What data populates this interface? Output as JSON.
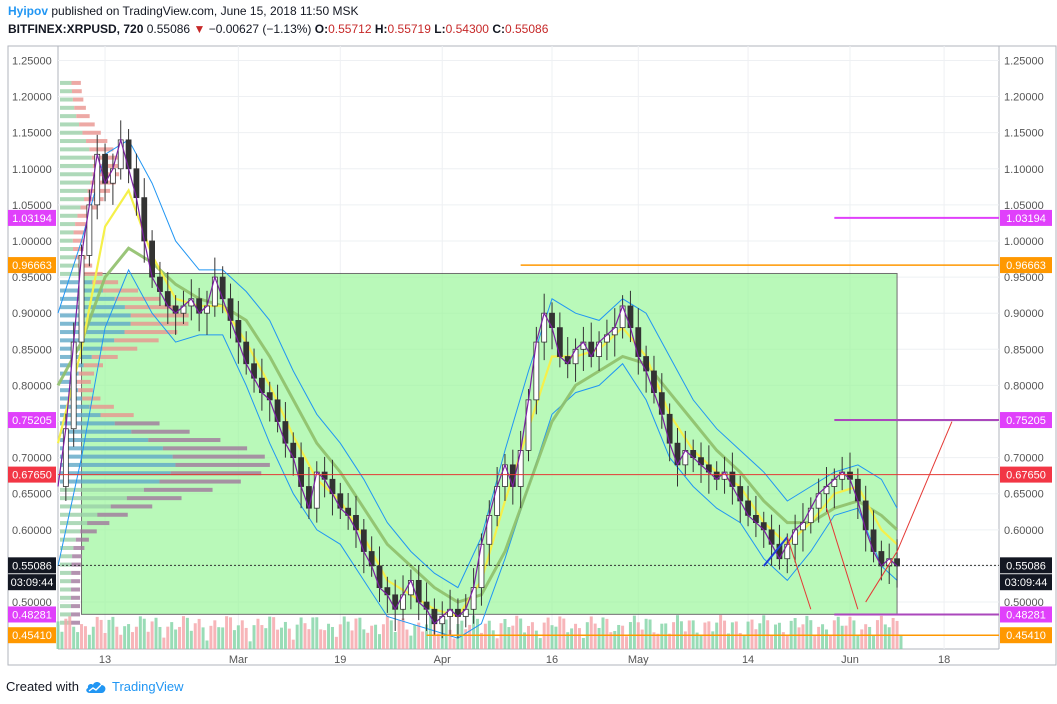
{
  "header": {
    "author": "Hyipov",
    "published": "published on TradingView.com, June 15, 2018 11:50 MSK",
    "symbol": "BITFINEX:XRPUSD, 720",
    "last": "0.55086",
    "change": "−0.00627 (−1.13%)",
    "o_label": "O:",
    "o": "0.55712",
    "h_label": "H:",
    "h": "0.55719",
    "l_label": "L:",
    "l": "0.54300",
    "c_label": "C:",
    "c": "0.55086"
  },
  "footer": {
    "created_with": "Created with",
    "brand": "TradingView"
  },
  "chart_data": {
    "type": "line",
    "price_axis": {
      "ylim": [
        0.435,
        1.27
      ],
      "ticks": [
        "0.50000",
        "0.55000",
        "0.60000",
        "0.65000",
        "0.70000",
        "0.75000",
        "0.80000",
        "0.85000",
        "0.90000",
        "0.95000",
        "1.00000",
        "1.05000",
        "1.10000",
        "1.15000",
        "1.20000",
        "1.25000"
      ]
    },
    "time_axis": {
      "labels": [
        "13",
        "Mar",
        "19",
        "Apr",
        "16",
        "May",
        "14",
        "Jun",
        "18"
      ]
    },
    "time_axis_positions_days": [
      0,
      17,
      30,
      43,
      57,
      68,
      82,
      95,
      107
    ],
    "time_range_days": [
      -6,
      114
    ],
    "price_labels": [
      {
        "text": "1.03194",
        "value": 1.03194,
        "color": "#e040fb"
      },
      {
        "text": "0.96663",
        "value": 0.96663,
        "color": "#ff9800"
      },
      {
        "text": "0.75205",
        "value": 0.75205,
        "color": "#e040fb"
      },
      {
        "text": "0.67650",
        "value": 0.6765,
        "color": "#f23645"
      },
      {
        "text": "0.55086",
        "value": 0.55086,
        "color": "#131722"
      },
      {
        "text": "03:09:44",
        "value": 0.5275,
        "color": "#131722"
      },
      {
        "text": "0.48281",
        "value": 0.48281,
        "color": "#e040fb"
      },
      {
        "text": "0.45410",
        "value": 0.4541,
        "color": "#ff9800"
      }
    ],
    "close_series": [
      [
        -6,
        0.66
      ],
      [
        -5,
        0.74
      ],
      [
        -4,
        0.86
      ],
      [
        -3,
        0.98
      ],
      [
        -2,
        1.05
      ],
      [
        -1,
        1.12
      ],
      [
        0,
        1.08
      ],
      [
        1,
        1.1
      ],
      [
        2,
        1.14
      ],
      [
        3,
        1.1
      ],
      [
        4,
        1.06
      ],
      [
        5,
        1.0
      ],
      [
        6,
        0.95
      ],
      [
        7,
        0.93
      ],
      [
        8,
        0.91
      ],
      [
        9,
        0.9
      ],
      [
        10,
        0.91
      ],
      [
        11,
        0.92
      ],
      [
        12,
        0.9
      ],
      [
        13,
        0.91
      ],
      [
        14,
        0.95
      ],
      [
        15,
        0.92
      ],
      [
        16,
        0.89
      ],
      [
        17,
        0.86
      ],
      [
        18,
        0.83
      ],
      [
        19,
        0.81
      ],
      [
        20,
        0.79
      ],
      [
        21,
        0.78
      ],
      [
        22,
        0.75
      ],
      [
        23,
        0.72
      ],
      [
        24,
        0.7
      ],
      [
        25,
        0.66
      ],
      [
        26,
        0.63
      ],
      [
        27,
        0.68
      ],
      [
        28,
        0.67
      ],
      [
        29,
        0.65
      ],
      [
        30,
        0.63
      ],
      [
        31,
        0.62
      ],
      [
        32,
        0.6
      ],
      [
        33,
        0.57
      ],
      [
        34,
        0.55
      ],
      [
        35,
        0.52
      ],
      [
        36,
        0.51
      ],
      [
        37,
        0.49
      ],
      [
        38,
        0.51
      ],
      [
        39,
        0.53
      ],
      [
        40,
        0.5
      ],
      [
        41,
        0.49
      ],
      [
        42,
        0.47
      ],
      [
        43,
        0.48
      ],
      [
        44,
        0.49
      ],
      [
        45,
        0.48
      ],
      [
        46,
        0.49
      ],
      [
        47,
        0.52
      ],
      [
        48,
        0.58
      ],
      [
        49,
        0.62
      ],
      [
        50,
        0.66
      ],
      [
        51,
        0.69
      ],
      [
        52,
        0.66
      ],
      [
        53,
        0.71
      ],
      [
        54,
        0.78
      ],
      [
        55,
        0.86
      ],
      [
        56,
        0.9
      ],
      [
        57,
        0.88
      ],
      [
        58,
        0.84
      ],
      [
        59,
        0.83
      ],
      [
        60,
        0.85
      ],
      [
        61,
        0.86
      ],
      [
        62,
        0.84
      ],
      [
        63,
        0.86
      ],
      [
        64,
        0.87
      ],
      [
        65,
        0.88
      ],
      [
        66,
        0.91
      ],
      [
        67,
        0.88
      ],
      [
        68,
        0.84
      ],
      [
        69,
        0.82
      ],
      [
        70,
        0.79
      ],
      [
        71,
        0.76
      ],
      [
        72,
        0.72
      ],
      [
        73,
        0.69
      ],
      [
        74,
        0.71
      ],
      [
        75,
        0.7
      ],
      [
        76,
        0.69
      ],
      [
        77,
        0.68
      ],
      [
        78,
        0.67
      ],
      [
        79,
        0.68
      ],
      [
        80,
        0.66
      ],
      [
        81,
        0.64
      ],
      [
        82,
        0.62
      ],
      [
        83,
        0.61
      ],
      [
        84,
        0.6
      ],
      [
        85,
        0.58
      ],
      [
        86,
        0.56
      ],
      [
        87,
        0.58
      ],
      [
        88,
        0.6
      ],
      [
        89,
        0.61
      ],
      [
        90,
        0.63
      ],
      [
        91,
        0.65
      ],
      [
        92,
        0.66
      ],
      [
        93,
        0.67
      ],
      [
        94,
        0.68
      ],
      [
        95,
        0.67
      ],
      [
        96,
        0.64
      ],
      [
        97,
        0.6
      ],
      [
        98,
        0.57
      ],
      [
        99,
        0.55
      ],
      [
        100,
        0.56
      ],
      [
        101,
        0.55
      ]
    ],
    "ema_fast": [
      [
        -6,
        0.72
      ],
      [
        -3,
        0.85
      ],
      [
        0,
        1.02
      ],
      [
        3,
        1.07
      ],
      [
        6,
        0.98
      ],
      [
        9,
        0.92
      ],
      [
        12,
        0.91
      ],
      [
        15,
        0.91
      ],
      [
        18,
        0.86
      ],
      [
        21,
        0.8
      ],
      [
        24,
        0.73
      ],
      [
        27,
        0.67
      ],
      [
        30,
        0.64
      ],
      [
        33,
        0.59
      ],
      [
        36,
        0.53
      ],
      [
        39,
        0.51
      ],
      [
        42,
        0.49
      ],
      [
        45,
        0.48
      ],
      [
        48,
        0.53
      ],
      [
        51,
        0.64
      ],
      [
        54,
        0.74
      ],
      [
        57,
        0.84
      ],
      [
        60,
        0.84
      ],
      [
        63,
        0.85
      ],
      [
        66,
        0.88
      ],
      [
        69,
        0.84
      ],
      [
        72,
        0.76
      ],
      [
        75,
        0.71
      ],
      [
        78,
        0.68
      ],
      [
        81,
        0.66
      ],
      [
        84,
        0.61
      ],
      [
        87,
        0.58
      ],
      [
        90,
        0.61
      ],
      [
        93,
        0.65
      ],
      [
        96,
        0.66
      ],
      [
        99,
        0.6
      ],
      [
        101,
        0.58
      ]
    ],
    "ema_slow": [
      [
        -6,
        0.8
      ],
      [
        -3,
        0.86
      ],
      [
        0,
        0.95
      ],
      [
        3,
        0.99
      ],
      [
        6,
        0.97
      ],
      [
        9,
        0.94
      ],
      [
        12,
        0.92
      ],
      [
        15,
        0.91
      ],
      [
        18,
        0.89
      ],
      [
        21,
        0.84
      ],
      [
        24,
        0.78
      ],
      [
        27,
        0.72
      ],
      [
        30,
        0.68
      ],
      [
        33,
        0.63
      ],
      [
        36,
        0.58
      ],
      [
        39,
        0.55
      ],
      [
        42,
        0.52
      ],
      [
        45,
        0.5
      ],
      [
        48,
        0.51
      ],
      [
        51,
        0.57
      ],
      [
        54,
        0.66
      ],
      [
        57,
        0.75
      ],
      [
        60,
        0.8
      ],
      [
        63,
        0.82
      ],
      [
        66,
        0.84
      ],
      [
        69,
        0.83
      ],
      [
        72,
        0.79
      ],
      [
        75,
        0.75
      ],
      [
        78,
        0.71
      ],
      [
        81,
        0.68
      ],
      [
        84,
        0.64
      ],
      [
        87,
        0.61
      ],
      [
        90,
        0.61
      ],
      [
        93,
        0.63
      ],
      [
        96,
        0.64
      ],
      [
        99,
        0.62
      ],
      [
        101,
        0.6
      ]
    ],
    "band_upper": [
      [
        -6,
        0.9
      ],
      [
        -3,
        1.0
      ],
      [
        0,
        1.12
      ],
      [
        3,
        1.14
      ],
      [
        6,
        1.08
      ],
      [
        9,
        1.0
      ],
      [
        12,
        0.96
      ],
      [
        15,
        0.96
      ],
      [
        18,
        0.93
      ],
      [
        21,
        0.89
      ],
      [
        24,
        0.82
      ],
      [
        27,
        0.76
      ],
      [
        30,
        0.72
      ],
      [
        33,
        0.67
      ],
      [
        36,
        0.61
      ],
      [
        39,
        0.57
      ],
      [
        42,
        0.54
      ],
      [
        45,
        0.52
      ],
      [
        48,
        0.59
      ],
      [
        51,
        0.71
      ],
      [
        54,
        0.82
      ],
      [
        57,
        0.92
      ],
      [
        60,
        0.9
      ],
      [
        63,
        0.89
      ],
      [
        66,
        0.92
      ],
      [
        69,
        0.9
      ],
      [
        72,
        0.84
      ],
      [
        75,
        0.78
      ],
      [
        78,
        0.74
      ],
      [
        81,
        0.71
      ],
      [
        84,
        0.68
      ],
      [
        87,
        0.64
      ],
      [
        90,
        0.66
      ],
      [
        93,
        0.68
      ],
      [
        96,
        0.69
      ],
      [
        99,
        0.67
      ],
      [
        101,
        0.63
      ]
    ],
    "band_lower": [
      [
        -6,
        0.55
      ],
      [
        -3,
        0.7
      ],
      [
        0,
        0.88
      ],
      [
        3,
        0.96
      ],
      [
        6,
        0.9
      ],
      [
        9,
        0.86
      ],
      [
        12,
        0.87
      ],
      [
        15,
        0.87
      ],
      [
        18,
        0.8
      ],
      [
        21,
        0.72
      ],
      [
        24,
        0.65
      ],
      [
        27,
        0.6
      ],
      [
        30,
        0.58
      ],
      [
        33,
        0.53
      ],
      [
        36,
        0.48
      ],
      [
        39,
        0.47
      ],
      [
        42,
        0.46
      ],
      [
        45,
        0.45
      ],
      [
        48,
        0.47
      ],
      [
        51,
        0.56
      ],
      [
        54,
        0.66
      ],
      [
        57,
        0.76
      ],
      [
        60,
        0.79
      ],
      [
        63,
        0.8
      ],
      [
        66,
        0.83
      ],
      [
        69,
        0.78
      ],
      [
        72,
        0.7
      ],
      [
        75,
        0.66
      ],
      [
        78,
        0.63
      ],
      [
        81,
        0.61
      ],
      [
        84,
        0.56
      ],
      [
        87,
        0.53
      ],
      [
        90,
        0.57
      ],
      [
        93,
        0.62
      ],
      [
        96,
        0.63
      ],
      [
        99,
        0.55
      ],
      [
        101,
        0.53
      ]
    ]
  }
}
